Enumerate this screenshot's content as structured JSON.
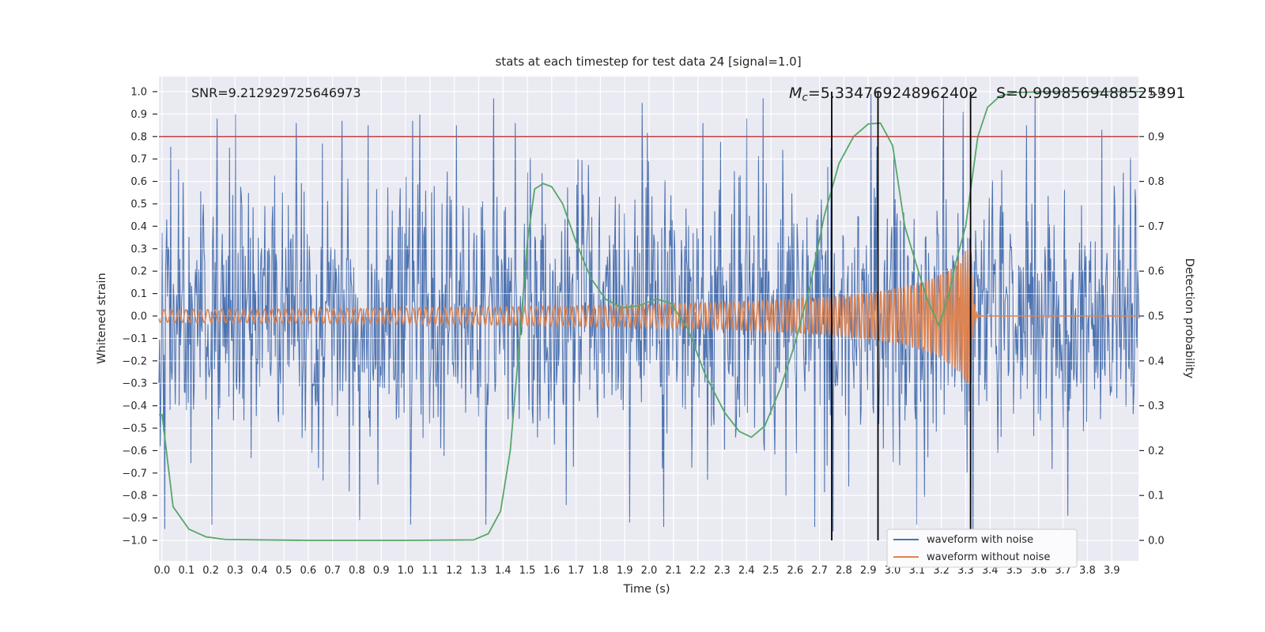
{
  "figure": {
    "title": "stats at each timestep for test data 24 [signal=1.0]",
    "background": "#ffffff"
  },
  "annotations": {
    "snr": "SNR=9.212929725646973",
    "mc_italic": "M",
    "mc_sub": "c",
    "mc_rest": "=5.334769248962402",
    "s": "S=0.9998569488525391"
  },
  "axes": {
    "background": "#EAEAF2",
    "grid_color": "#FFFFFF",
    "tick_color": "#262626",
    "x": {
      "label": "Time (s)",
      "ticks": [
        "0.0",
        "0.1",
        "0.2",
        "0.3",
        "0.4",
        "0.5",
        "0.6",
        "0.7",
        "0.8",
        "0.9",
        "1.0",
        "1.1",
        "1.2",
        "1.3",
        "1.4",
        "1.5",
        "1.6",
        "1.7",
        "1.8",
        "1.9",
        "2.0",
        "2.1",
        "2.2",
        "2.3",
        "2.4",
        "2.5",
        "2.6",
        "2.7",
        "2.8",
        "2.9",
        "3.0",
        "3.1",
        "3.2",
        "3.3",
        "3.4",
        "3.5",
        "3.6",
        "3.7",
        "3.8",
        "3.9"
      ]
    },
    "y_left": {
      "label": "Whitened strain",
      "ticks": [
        "1.0",
        "0.9",
        "0.8",
        "0.7",
        "0.6",
        "0.5",
        "0.4",
        "0.3",
        "0.2",
        "0.1",
        "0.0",
        "−0.1",
        "−0.2",
        "−0.3",
        "−0.4",
        "−0.5",
        "−0.6",
        "−0.7",
        "−0.8",
        "−0.9",
        "−1.0"
      ]
    },
    "y_right": {
      "label": "Detection probability",
      "ticks": [
        "1.0",
        "0.9",
        "0.8",
        "0.7",
        "0.6",
        "0.5",
        "0.4",
        "0.3",
        "0.2",
        "0.1",
        "0.0"
      ]
    }
  },
  "legend": {
    "items": [
      {
        "label": "waveform with noise",
        "color": "#4C72B0"
      },
      {
        "label": "waveform without noise",
        "color": "#DD8452"
      }
    ]
  },
  "chart_data": {
    "type": "line",
    "title": "stats at each timestep for test data 24 [signal=1.0]",
    "xlabel": "Time (s)",
    "ylabel_left": "Whitened strain",
    "ylabel_right": "Detection probability",
    "xlim": [
      -0.013,
      4.012
    ],
    "ylim_left": [
      -1.092,
      1.067
    ],
    "ylim_right": [
      0.0,
      1.0
    ],
    "grid": true,
    "legend_position": "lower right",
    "threshold_line": {
      "axis": "right",
      "value": 0.9,
      "color": "#C44E52"
    },
    "event_vlines": {
      "times": [
        2.75,
        2.94,
        3.32
      ],
      "color": "#000000"
    },
    "series": [
      {
        "name": "waveform with noise",
        "color": "#4C72B0",
        "kind": "gaussian-noise-plus-signal",
        "n_samples": 1500,
        "noise_sigma": 0.3,
        "clip": 0.97,
        "seed": 42,
        "spikes": [
          [
            0.205,
            -0.93
          ],
          [
            0.225,
            0.88
          ],
          [
            0.3,
            0.9
          ],
          [
            0.55,
            0.86
          ],
          [
            0.74,
            0.87
          ],
          [
            0.81,
            -0.91
          ],
          [
            0.845,
            0.85
          ],
          [
            1.02,
            -0.93
          ],
          [
            1.21,
            0.85
          ],
          [
            1.33,
            -0.93
          ],
          [
            1.362,
            0.97
          ],
          [
            1.45,
            0.86
          ],
          [
            1.92,
            -0.92
          ],
          [
            1.97,
            0.95
          ],
          [
            2.06,
            -0.94
          ],
          [
            2.22,
            0.86
          ],
          [
            2.4,
            0.88
          ],
          [
            2.468,
            0.97
          ],
          [
            2.68,
            -0.94
          ],
          [
            2.755,
            -0.96
          ],
          [
            2.91,
            0.99
          ],
          [
            3.1,
            -0.93
          ],
          [
            3.208,
            0.99
          ],
          [
            3.29,
            0.91
          ],
          [
            3.55,
            0.85
          ],
          [
            3.72,
            -0.89
          ],
          [
            3.86,
            0.83
          ]
        ]
      },
      {
        "name": "waveform without noise",
        "color": "#DD8452",
        "kind": "chirp",
        "chirp": {
          "t_coalescence": 3.45,
          "t_merger": 3.322,
          "f0_hz": 33,
          "freq_exponent": -0.38,
          "amp0": 0.028,
          "amp_exponent": -0.7,
          "amp_ref_time": 3.42,
          "amp_cap": 0.3,
          "ringdown_tau": 0.008
        }
      },
      {
        "name": "detection probability",
        "color": "#55A868",
        "axis": "right",
        "points": [
          [
            -0.013,
            0.28
          ],
          [
            0.0,
            0.28
          ],
          [
            0.045,
            0.075
          ],
          [
            0.11,
            0.025
          ],
          [
            0.18,
            0.008
          ],
          [
            0.26,
            0.002
          ],
          [
            0.6,
            0.0
          ],
          [
            1.0,
            0.0
          ],
          [
            1.28,
            0.001
          ],
          [
            1.34,
            0.015
          ],
          [
            1.39,
            0.065
          ],
          [
            1.43,
            0.2
          ],
          [
            1.465,
            0.425
          ],
          [
            1.5,
            0.665
          ],
          [
            1.53,
            0.783
          ],
          [
            1.565,
            0.795
          ],
          [
            1.6,
            0.788
          ],
          [
            1.645,
            0.75
          ],
          [
            1.7,
            0.665
          ],
          [
            1.76,
            0.585
          ],
          [
            1.82,
            0.538
          ],
          [
            1.89,
            0.518
          ],
          [
            1.96,
            0.523
          ],
          [
            2.03,
            0.538
          ],
          [
            2.09,
            0.528
          ],
          [
            2.16,
            0.47
          ],
          [
            2.23,
            0.37
          ],
          [
            2.31,
            0.285
          ],
          [
            2.37,
            0.243
          ],
          [
            2.42,
            0.23
          ],
          [
            2.475,
            0.255
          ],
          [
            2.54,
            0.34
          ],
          [
            2.6,
            0.44
          ],
          [
            2.66,
            0.565
          ],
          [
            2.72,
            0.725
          ],
          [
            2.78,
            0.84
          ],
          [
            2.84,
            0.9
          ],
          [
            2.9,
            0.928
          ],
          [
            2.95,
            0.93
          ],
          [
            3.0,
            0.88
          ],
          [
            3.05,
            0.7
          ],
          [
            3.1,
            0.61
          ],
          [
            3.14,
            0.54
          ],
          [
            3.19,
            0.478
          ],
          [
            3.225,
            0.535
          ],
          [
            3.26,
            0.62
          ],
          [
            3.3,
            0.7
          ],
          [
            3.35,
            0.9
          ],
          [
            3.39,
            0.965
          ],
          [
            3.44,
            0.99
          ],
          [
            3.5,
            0.998
          ],
          [
            3.62,
            0.9999
          ],
          [
            4.012,
            0.9999
          ]
        ]
      }
    ],
    "stats": {
      "SNR": 9.212929725646973,
      "Mc": 5.334769248962402,
      "S": 0.9998569488525391
    }
  }
}
